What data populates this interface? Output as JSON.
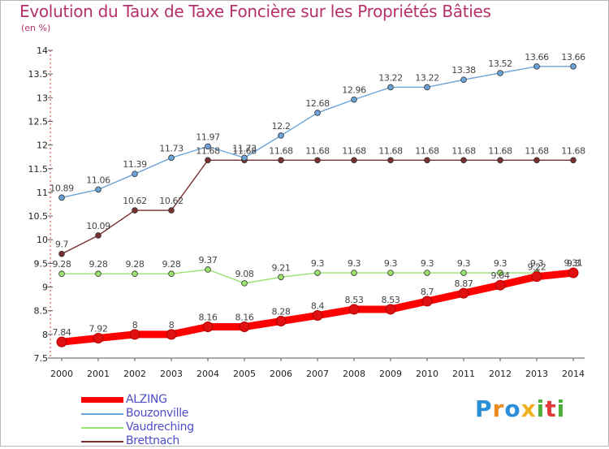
{
  "title": "Evolution du Taux de Taxe Foncière sur les Propriétés Bâties",
  "unit": "(en %)",
  "logo": {
    "letters": [
      "P",
      "r",
      "o",
      "x",
      "i",
      "t",
      "i"
    ],
    "colors": [
      "#2a8fd8",
      "#ee8a1f",
      "#2a8fd8",
      "#f0b020",
      "#4caf3a",
      "#e03a3a",
      "#4caf3a"
    ]
  },
  "chart_data": {
    "type": "line",
    "x": [
      "2000",
      "2001",
      "2002",
      "2003",
      "2004",
      "2005",
      "2006",
      "2007",
      "2008",
      "2009",
      "2010",
      "2011",
      "2012",
      "2013",
      "2014"
    ],
    "ylim": [
      7.5,
      14
    ],
    "yticks": [
      "7.5",
      "8",
      "8.5",
      "9",
      "9.5",
      "10",
      "10.5",
      "11",
      "11.5",
      "12",
      "12.5",
      "13",
      "13.5",
      "14"
    ],
    "grid": false,
    "legend_position": "bottom-left",
    "series": [
      {
        "name": "ALZING",
        "color": "#ff0000",
        "values": [
          7.84,
          7.92,
          8,
          8,
          8.16,
          8.16,
          8.28,
          8.4,
          8.53,
          8.53,
          8.7,
          8.87,
          9.04,
          9.22,
          9.3
        ],
        "labels": [
          "7.84",
          "7.92",
          "8",
          "8",
          "8.16",
          "8.16",
          "8.28",
          "8.4",
          "8.53",
          "8.53",
          "8.7",
          "8.87",
          "9.04",
          "9.22",
          "9.3"
        ]
      },
      {
        "name": "Bouzonville",
        "color": "#6aa3d8",
        "values": [
          10.89,
          11.06,
          11.39,
          11.73,
          11.97,
          11.73,
          12.2,
          12.68,
          12.96,
          13.22,
          13.22,
          13.38,
          13.52,
          13.66,
          13.66
        ],
        "labels": [
          "10.89",
          "11.06",
          "11.39",
          "11.73",
          "11.97",
          "11.73",
          "12.2",
          "12.68",
          "12.96",
          "13.22",
          "13.22",
          "13.38",
          "13.52",
          "13.66",
          "13.66"
        ]
      },
      {
        "name": "Vaudreching",
        "color": "#99e26e",
        "values": [
          9.28,
          9.28,
          9.28,
          9.28,
          9.37,
          9.08,
          9.21,
          9.3,
          9.3,
          9.3,
          9.3,
          9.3,
          9.3,
          9.3,
          9.31
        ],
        "labels": [
          "9.28",
          "9.28",
          "9.28",
          "9.28",
          "9.37",
          "9.08",
          "9.21",
          "9.3",
          "9.3",
          "9.3",
          "9.3",
          "9.3",
          "9.3",
          "9.3",
          "9.31"
        ]
      },
      {
        "name": "Brettnach",
        "color": "#7a3030",
        "values": [
          9.7,
          10.09,
          10.62,
          10.62,
          11.68,
          11.68,
          11.68,
          11.68,
          11.68,
          11.68,
          11.68,
          11.68,
          11.68,
          11.68,
          11.68
        ],
        "labels": [
          "9.7",
          "10.09",
          "10.62",
          "10.62",
          "11.68",
          "11.68",
          "11.68",
          "11.68",
          "11.68",
          "11.68",
          "11.68",
          "11.68",
          "11.68",
          "11.68",
          "11.68"
        ]
      }
    ]
  }
}
